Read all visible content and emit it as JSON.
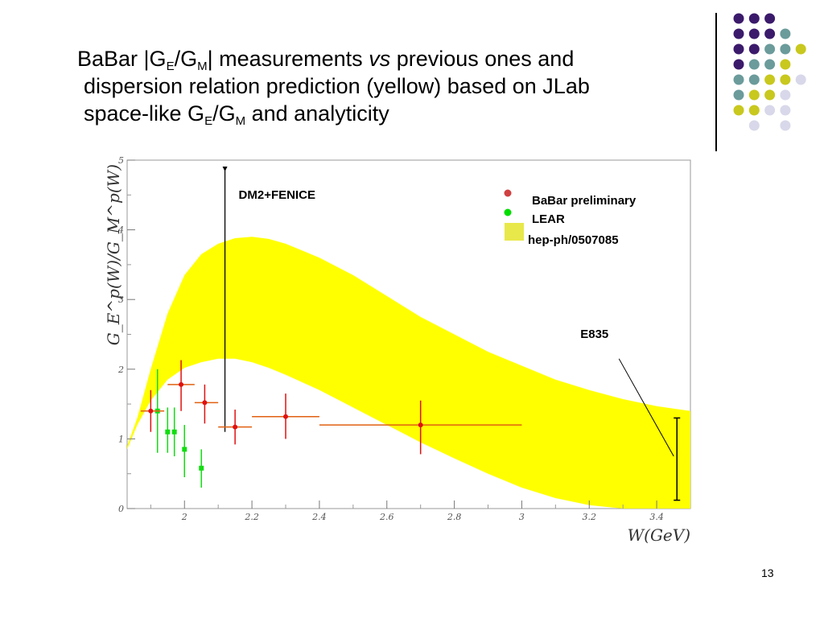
{
  "slide": {
    "title_line1_a": "BaBar |G",
    "title_line1_b": "E",
    "title_line1_c": "/G",
    "title_line1_d": "M",
    "title_line1_e": "| measurements ",
    "title_line1_f": "vs",
    "title_line1_g": " previous ones and",
    "title_line2": "dispersion relation prediction (yellow) based on JLab",
    "title_line3_a": "space-like G",
    "title_line3_b": "E",
    "title_line3_c": "/G",
    "title_line3_d": "M",
    "title_line3_e": " and analyticity",
    "page_number": "13"
  },
  "decoration": {
    "dot_colors": {
      "purple": "#3b1a6b",
      "teal": "#6b9b9b",
      "yellow": "#c8c81e",
      "lavender": "#d8d8ea"
    }
  },
  "chart_data": {
    "type": "scatter",
    "title": "",
    "xlabel": "W(GeV)",
    "ylabel": "G_E^p(W)/G_M^p(W)",
    "xlim": [
      1.83,
      3.5
    ],
    "ylim": [
      0,
      5
    ],
    "x_ticks": [
      2.0,
      2.2,
      2.4,
      2.6,
      2.8,
      3.0,
      3.2,
      3.4
    ],
    "x_tick_labels": [
      "2",
      "2.2",
      "2.4",
      "2.6",
      "2.8",
      "3",
      "3.2",
      "3.4"
    ],
    "y_ticks": [
      0,
      1,
      2,
      3,
      4,
      5
    ],
    "y_tick_labels": [
      "0",
      "1",
      "2",
      "3",
      "4",
      "5"
    ],
    "grid": false,
    "legend": {
      "position": "top-right",
      "entries": [
        {
          "label": "BaBar preliminary",
          "color": "#d04040",
          "marker": "dot"
        },
        {
          "label": "LEAR",
          "color": "#00dd00",
          "marker": "dot"
        },
        {
          "label": "hep-ph/0507085",
          "color": "#e8e84a",
          "marker": "box"
        }
      ]
    },
    "annotations": {
      "dm2_fenice": {
        "label": "DM2+FENICE",
        "x": 2.12,
        "y_low": 1.1,
        "y_high": 5.3
      },
      "e835": {
        "label": "E835",
        "x": 3.46,
        "y_low": 0.12,
        "y_high": 1.3
      }
    },
    "band": {
      "name": "hep-ph/0507085",
      "color": "#ffff00",
      "x": [
        1.83,
        1.86,
        1.9,
        1.95,
        2.0,
        2.05,
        2.1,
        2.15,
        2.2,
        2.25,
        2.3,
        2.4,
        2.5,
        2.6,
        2.7,
        2.8,
        2.9,
        3.0,
        3.1,
        3.2,
        3.3,
        3.4,
        3.5
      ],
      "upper": [
        0.9,
        1.3,
        2.0,
        2.8,
        3.35,
        3.65,
        3.8,
        3.88,
        3.9,
        3.87,
        3.8,
        3.6,
        3.35,
        3.05,
        2.75,
        2.5,
        2.25,
        2.05,
        1.85,
        1.7,
        1.57,
        1.47,
        1.4
      ],
      "lower": [
        0.85,
        1.2,
        1.55,
        1.85,
        2.02,
        2.1,
        2.15,
        2.15,
        2.1,
        2.02,
        1.92,
        1.7,
        1.45,
        1.2,
        0.95,
        0.72,
        0.5,
        0.3,
        0.15,
        0.05,
        0.0,
        0.0,
        0.0
      ]
    },
    "series": [
      {
        "name": "BaBar preliminary",
        "color": "#e01010",
        "xerr_color": "#e06010",
        "points": [
          {
            "x": 1.9,
            "y": 1.4,
            "xlo": 1.87,
            "xhi": 1.94,
            "ylo": 1.1,
            "yhi": 1.7
          },
          {
            "x": 1.99,
            "y": 1.78,
            "xlo": 1.95,
            "xhi": 2.03,
            "ylo": 1.4,
            "yhi": 2.13
          },
          {
            "x": 2.06,
            "y": 1.52,
            "xlo": 2.03,
            "xhi": 2.1,
            "ylo": 1.22,
            "yhi": 1.78
          },
          {
            "x": 2.15,
            "y": 1.17,
            "xlo": 2.1,
            "xhi": 2.2,
            "ylo": 0.92,
            "yhi": 1.42
          },
          {
            "x": 2.3,
            "y": 1.32,
            "xlo": 2.2,
            "xhi": 2.4,
            "ylo": 1.0,
            "yhi": 1.65
          },
          {
            "x": 2.7,
            "y": 1.2,
            "xlo": 2.4,
            "xhi": 3.0,
            "ylo": 0.78,
            "yhi": 1.55
          }
        ]
      },
      {
        "name": "LEAR",
        "color": "#10dd10",
        "points": [
          {
            "x": 1.92,
            "y": 1.4,
            "ylo": 0.8,
            "yhi": 2.0
          },
          {
            "x": 1.95,
            "y": 1.1,
            "ylo": 0.8,
            "yhi": 1.45
          },
          {
            "x": 1.97,
            "y": 1.1,
            "ylo": 0.75,
            "yhi": 1.45
          },
          {
            "x": 2.0,
            "y": 0.85,
            "ylo": 0.45,
            "yhi": 1.2
          },
          {
            "x": 2.05,
            "y": 0.58,
            "ylo": 0.3,
            "yhi": 0.85
          }
        ]
      }
    ]
  }
}
